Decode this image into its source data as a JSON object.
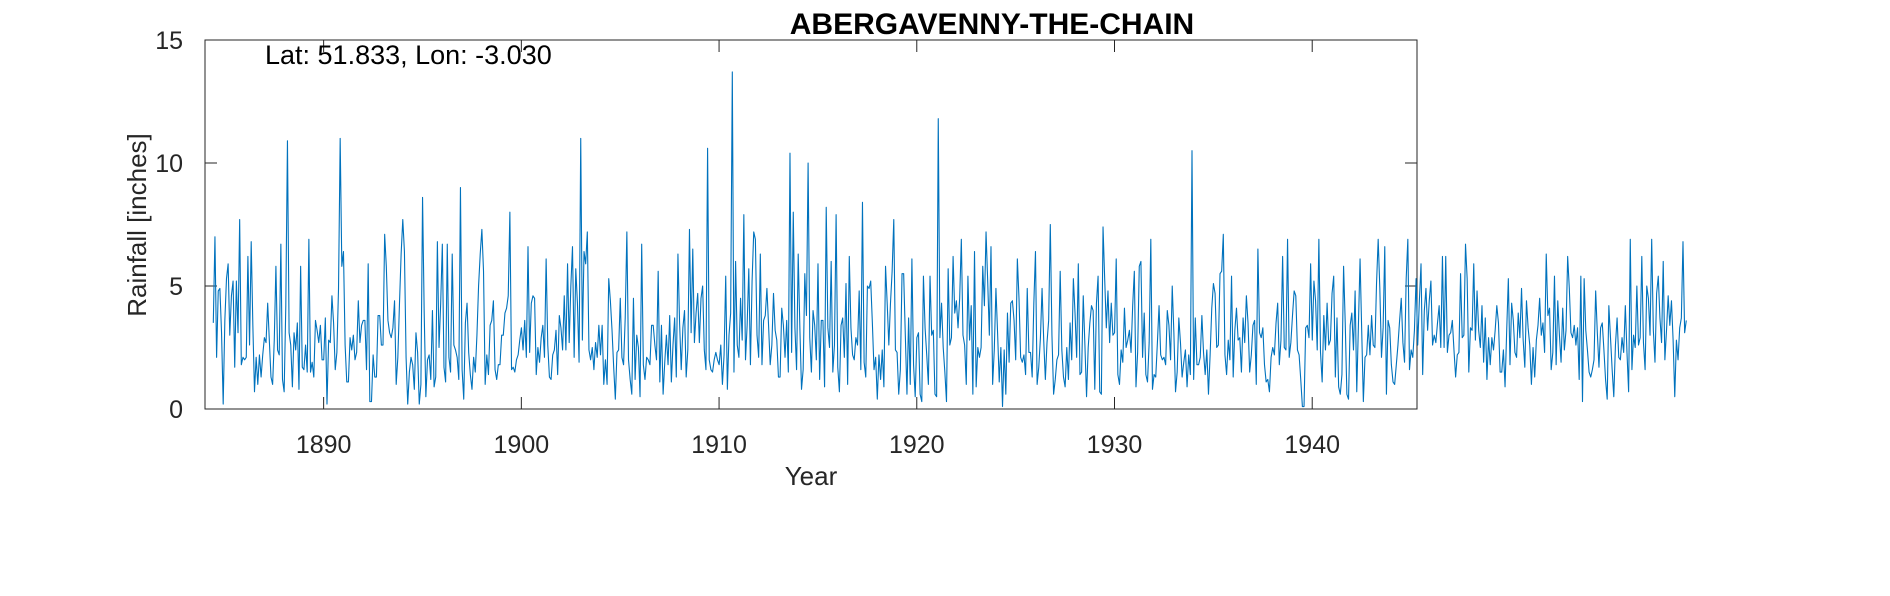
{
  "chart_data": {
    "type": "line",
    "title": "ABERGAVENNY-THE-CHAIN",
    "annotation": "Lat: 51.833, Lon: -3.030",
    "xlabel": "Year",
    "ylabel": "Rainfall [inches]",
    "xlim": [
      1884.0,
      1945.3
    ],
    "ylim": [
      0,
      15
    ],
    "xticks": [
      1890,
      1900,
      1910,
      1920,
      1930,
      1940
    ],
    "yticks": [
      0,
      5,
      10,
      15
    ],
    "grid": false,
    "colors": {
      "series": "#0072BD",
      "axis": "#262626"
    },
    "series": [
      {
        "x_start": 1884.42,
        "x_step": 0.0833333,
        "values": [
          3.5,
          7.0,
          2.1,
          4.8,
          4.9,
          3.1,
          0.2,
          3.6,
          5.3,
          5.9,
          3.0,
          4.6,
          5.2,
          1.7,
          5.2,
          3.1,
          7.7,
          1.8,
          2.1,
          2.0,
          2.1,
          6.2,
          2.6,
          6.8,
          3.4,
          0.7,
          2.1,
          1.0,
          2.2,
          1.3,
          2.2,
          2.9,
          2.7,
          4.3,
          2.8,
          1.3,
          1.0,
          2.8,
          5.8,
          2.4,
          2.2,
          6.7,
          1.2,
          0.7,
          4.2,
          10.9,
          3.1,
          2.6,
          0.9,
          3.1,
          2.4,
          3.5,
          0.8,
          5.8,
          1.7,
          1.6,
          2.6,
          1.5,
          6.9,
          1.5,
          1.9,
          1.3,
          3.6,
          3.2,
          2.7,
          3.4,
          2.0,
          2.0,
          3.7,
          0.2,
          2.8,
          2.7,
          4.6,
          3.5,
          1.6,
          2.3,
          4.9,
          11.0,
          5.8,
          6.4,
          2.6,
          1.1,
          1.1,
          2.9,
          2.4,
          3.0,
          2.0,
          2.3,
          4.4,
          2.7,
          3.4,
          3.6,
          3.6,
          1.6,
          5.9,
          0.3,
          0.3,
          2.2,
          1.3,
          1.3,
          3.8,
          3.8,
          2.6,
          2.6,
          7.1,
          5.8,
          3.6,
          3.1,
          2.9,
          3.3,
          4.4,
          1.0,
          2.1,
          4.3,
          6.3,
          7.7,
          6.4,
          2.1,
          0.2,
          1.5,
          2.1,
          1.8,
          0.8,
          3.1,
          2.3,
          0.2,
          1.0,
          8.6,
          3.9,
          0.5,
          2.0,
          2.2,
          1.2,
          4.0,
          0.9,
          1.3,
          6.8,
          2.5,
          4.3,
          6.7,
          1.7,
          1.1,
          6.7,
          2.1,
          1.5,
          6.3,
          2.6,
          2.4,
          2.1,
          1.2,
          9.0,
          1.6,
          0.4,
          3.5,
          4.3,
          2.3,
          1.4,
          0.8,
          2.1,
          1.5,
          3.0,
          5.0,
          6.3,
          7.3,
          5.6,
          1.0,
          2.2,
          1.4,
          3.4,
          3.6,
          4.4,
          1.6,
          1.2,
          1.8,
          1.8,
          3.0,
          3.0,
          3.9,
          4.1,
          4.6,
          8.0,
          1.6,
          1.7,
          1.5,
          2.0,
          2.2,
          2.8,
          3.3,
          2.4,
          3.6,
          2.1,
          6.6,
          2.3,
          4.3,
          4.6,
          4.5,
          1.4,
          2.5,
          1.9,
          2.9,
          3.4,
          2.1,
          6.1,
          2.6,
          1.3,
          1.2,
          2.2,
          2.4,
          3.2,
          1.4,
          3.8,
          3.3,
          2.4,
          4.6,
          2.4,
          5.9,
          2.7,
          5.0,
          6.6,
          2.1,
          5.7,
          4.3,
          1.9,
          11.0,
          2.8,
          6.4,
          5.9,
          7.2,
          2.4,
          2.0,
          2.5,
          1.6,
          2.7,
          2.1,
          3.4,
          2.2,
          3.4,
          1.0,
          2.0,
          1.0,
          5.3,
          4.4,
          3.2,
          1.7,
          0.4,
          2.3,
          2.4,
          4.5,
          2.1,
          1.8,
          3.7,
          7.2,
          2.0,
          1.2,
          0.6,
          4.5,
          1.2,
          3.0,
          2.5,
          0.5,
          6.7,
          1.8,
          1.2,
          2.1,
          2.0,
          1.8,
          3.4,
          3.4,
          2.6,
          2.0,
          5.6,
          1.1,
          3.4,
          0.6,
          1.9,
          3.0,
          1.8,
          3.8,
          1.1,
          2.6,
          3.7,
          1.3,
          6.3,
          3.5,
          1.6,
          3.3,
          4.0,
          1.3,
          2.4,
          7.3,
          3.1,
          6.5,
          2.7,
          3.9,
          4.7,
          2.7,
          4.5,
          5.0,
          2.4,
          1.6,
          10.6,
          2.0,
          1.6,
          1.5,
          2.0,
          2.3,
          2.0,
          1.8,
          2.6,
          1.0,
          2.2,
          5.4,
          0.8,
          3.0,
          3.9,
          13.7,
          1.5,
          6.0,
          2.6,
          2.1,
          4.5,
          2.8,
          7.9,
          2.0,
          3.4,
          5.7,
          1.8,
          5.2,
          7.2,
          6.9,
          3.0,
          2.1,
          6.3,
          1.8,
          3.6,
          3.8,
          4.9,
          3.4,
          1.8,
          2.6,
          4.7,
          3.2,
          2.8,
          1.3,
          1.3,
          4.1,
          3.4,
          2.1,
          3.6,
          1.5,
          10.4,
          2.3,
          8.0,
          3.3,
          1.6,
          6.3,
          3.3,
          0.8,
          1.6,
          5.5,
          3.8,
          10.0,
          2.9,
          1.5,
          4.0,
          3.4,
          2.0,
          5.9,
          1.2,
          3.6,
          3.6,
          0.9,
          8.2,
          3.3,
          2.5,
          6.0,
          1.5,
          2.6,
          7.9,
          1.7,
          0.7,
          3.4,
          3.7,
          2.1,
          5.1,
          1.0,
          6.2,
          3.3,
          2.2,
          2.0,
          2.9,
          2.6,
          4.8,
          1.6,
          8.4,
          1.9,
          1.3,
          5.0,
          4.9,
          5.2,
          3.5,
          1.6,
          2.1,
          0.4,
          2.2,
          1.2,
          2.4,
          0.9,
          5.8,
          4.3,
          2.6,
          4.3,
          5.6,
          7.7,
          2.4,
          2.3,
          0.6,
          1.6,
          5.5,
          5.5,
          3.0,
          0.6,
          3.7,
          1.0,
          6.1,
          1.8,
          0.5,
          2.9,
          3.1,
          0.6,
          0.3,
          5.4,
          3.3,
          2.2,
          1.0,
          5.4,
          3.0,
          3.2,
          0.6,
          0.5,
          11.8,
          2.9,
          4.3,
          2.5,
          1.5,
          0.3,
          5.7,
          2.6,
          2.9,
          6.2,
          3.9,
          4.4,
          3.3,
          4.5,
          6.9,
          3.0,
          2.6,
          1.0,
          5.4,
          2.8,
          4.2,
          0.6,
          6.4,
          0.9,
          2.5,
          2.1,
          2.5,
          5.8,
          4.2,
          7.2,
          5.2,
          3.0,
          6.6,
          1.0,
          2.4,
          4.9,
          3.1,
          1.1,
          2.5,
          0.1,
          2.4,
          0.6,
          3.9,
          1.9,
          4.3,
          4.4,
          3.6,
          2.0,
          6.1,
          4.5,
          2.1,
          1.9,
          2.2,
          1.4,
          4.9,
          2.3,
          2.3,
          1.3,
          4.3,
          6.4,
          1.0,
          1.7,
          2.9,
          4.9,
          2.8,
          1.2,
          2.7,
          3.6,
          7.5,
          3.0,
          0.6,
          1.2,
          2.0,
          2.2,
          5.6,
          2.4,
          1.3,
          0.9,
          2.5,
          1.2,
          3.5,
          2.0,
          5.3,
          3.9,
          2.1,
          5.9,
          1.4,
          1.5,
          4.6,
          2.6,
          0.5,
          2.5,
          3.5,
          4.2,
          4.0,
          0.8,
          4.3,
          5.4,
          0.7,
          0.6,
          7.4,
          5.3,
          3.3,
          4.8,
          2.7,
          4.3,
          3.0,
          3.1,
          6.1,
          1.4,
          1.0,
          2.4,
          1.9,
          4.1,
          2.5,
          2.8,
          3.2,
          2.3,
          4.2,
          5.6,
          0.9,
          2.3,
          5.8,
          6.0,
          2.1,
          3.9,
          1.4,
          1.1,
          2.7,
          6.9,
          0.8,
          1.4,
          1.3,
          2.7,
          4.2,
          2.2,
          2.0,
          2.1,
          1.8,
          4.0,
          3.4,
          2.0,
          5.0,
          3.1,
          0.7,
          1.5,
          3.7,
          2.7,
          1.3,
          1.9,
          2.4,
          0.9,
          2.2,
          1.4,
          10.5,
          1.2,
          3.7,
          1.8,
          1.8,
          2.1,
          3.8,
          2.3,
          1.4,
          2.4,
          0.6,
          2.2,
          4.1,
          5.1,
          4.7,
          2.5,
          2.6,
          5.5,
          5.6,
          7.1,
          2.2,
          1.4,
          2.8,
          2.0,
          5.4,
          1.3,
          3.2,
          4.1,
          2.8,
          2.9,
          1.5,
          3.7,
          2.7,
          4.6,
          3.5,
          1.5,
          2.2,
          3.4,
          3.6,
          1.0,
          6.5,
          3.1,
          2.9,
          3.3,
          1.8,
          1.1,
          1.2,
          0.7,
          2.1,
          2.5,
          2.2,
          3.5,
          4.3,
          1.8,
          2.8,
          6.2,
          2.5,
          2.4,
          6.9,
          2.1,
          2.7,
          3.8,
          4.8,
          4.6,
          2.4,
          2.2,
          1.2,
          0.1,
          0.1,
          3.3,
          3.4,
          2.9,
          5.9,
          2.8,
          5.2,
          4.4,
          2.4,
          6.9,
          2.3,
          1.1,
          3.8,
          2.4,
          4.3,
          2.6,
          2.8,
          4.7,
          5.4,
          1.3,
          3.7,
          0.9,
          0.6,
          1.4,
          5.8,
          3.5,
          0.6,
          0.4,
          3.4,
          3.9,
          2.4,
          4.8,
          0.7,
          3.4,
          6.1,
          3.2,
          0.3,
          2.1,
          2.2,
          3.4,
          2.2,
          3.8,
          2.6,
          2.5,
          5.1,
          6.9,
          4.9,
          2.1,
          3.3,
          6.6,
          0.6,
          3.6,
          3.3,
          1.8,
          1.1,
          1.0,
          1.8,
          2.6,
          3.6,
          4.5,
          2.7,
          1.9,
          5.3,
          6.9,
          1.6,
          2.4,
          2.1,
          3.2,
          5.3,
          2.6,
          4.4,
          5.9,
          1.4,
          4.0,
          4.9,
          3.2,
          4.4,
          5.2,
          2.6,
          3.0,
          2.7,
          3.5,
          4.2,
          2.5,
          6.2,
          2.5,
          6.2,
          2.3,
          3.0,
          3.1,
          3.6,
          2.4,
          1.3,
          2.2,
          2.3,
          5.5,
          2.9,
          3.0,
          6.7,
          5.3,
          1.5,
          3.3,
          3.2,
          5.9,
          2.8,
          4.8,
          3.2,
          2.5,
          4.2,
          1.9,
          3.7,
          1.2,
          2.9,
          1.8,
          2.9,
          2.4,
          3.2,
          4.2,
          3.5,
          1.5,
          1.5,
          2.4,
          0.9,
          3.2,
          5.3,
          1.8,
          4.3,
          3.6,
          2.3,
          2.1,
          3.9,
          2.9,
          4.9,
          2.8,
          1.7,
          4.4,
          3.3,
          2.6,
          1.0,
          2.5,
          1.3,
          2.8,
          3.4,
          4.5,
          3.0,
          3.5,
          2.3,
          6.3,
          3.8,
          4.1,
          1.6,
          2.3,
          5.4,
          1.8,
          4.4,
          3.0,
          1.9,
          4.1,
          2.4,
          3.2,
          6.2,
          4.9,
          3.1,
          2.9,
          3.4,
          2.6,
          3.3,
          1.2,
          5.4,
          0.3,
          5.3,
          3.2,
          2.4,
          1.5,
          1.3,
          1.6,
          2.0,
          4.8,
          3.1,
          1.7,
          3.3,
          3.5,
          2.4,
          1.2,
          0.4,
          4.2,
          2.9,
          1.6,
          0.5,
          2.6,
          3.7,
          2.1,
          2.0,
          2.9,
          2.3,
          4.2,
          2.3,
          0.7,
          6.9,
          1.6,
          3.0,
          2.5,
          5.0,
          2.6,
          2.9,
          6.2,
          2.7,
          1.6,
          5.0,
          4.5,
          3.0,
          6.9,
          3.2,
          1.9,
          4.7,
          5.4,
          3.7,
          2.7,
          6.0,
          2.0,
          3.2,
          4.6,
          3.4,
          4.4,
          2.8,
          0.5,
          2.8,
          2.0,
          3.3,
          3.7,
          6.8,
          3.1,
          3.6
        ]
      }
    ]
  }
}
